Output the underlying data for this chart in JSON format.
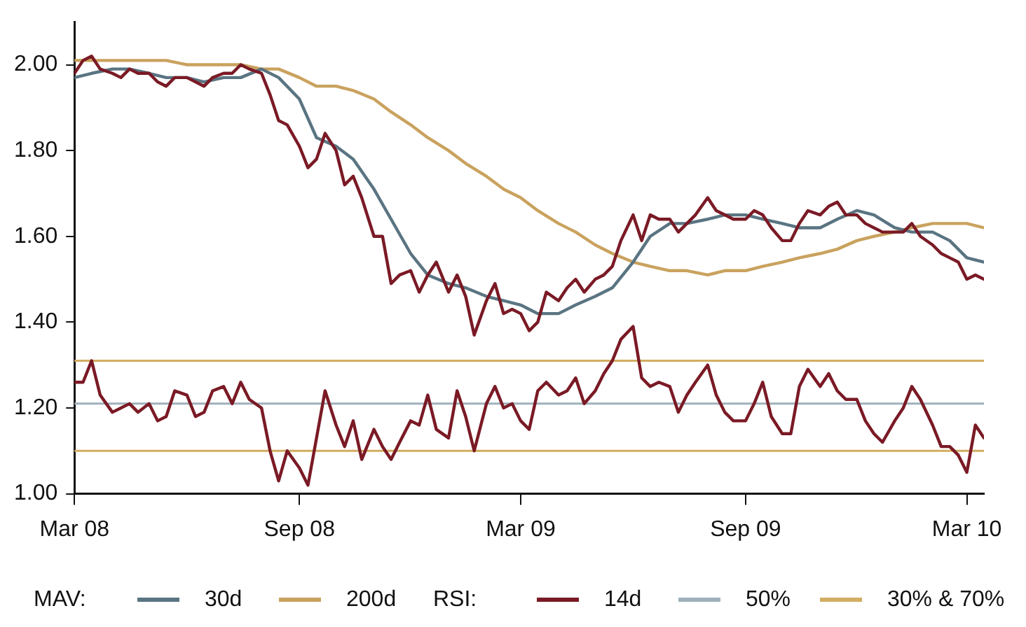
{
  "chart_data": {
    "type": "line",
    "xlim": [
      "2008-03-01",
      "2010-03-15"
    ],
    "xticks": [
      {
        "value": "2008-03-01",
        "label": "Mar 08"
      },
      {
        "value": "2008-09-01",
        "label": "Sep 08"
      },
      {
        "value": "2009-03-01",
        "label": "Mar 09"
      },
      {
        "value": "2009-09-01",
        "label": "Sep 09"
      },
      {
        "value": "2010-03-01",
        "label": "Mar 10"
      }
    ],
    "ylim": [
      1.0,
      2.1
    ],
    "yticks": [
      {
        "value": 1.0,
        "label": "1.00"
      },
      {
        "value": 1.2,
        "label": "1.20"
      },
      {
        "value": 1.4,
        "label": "1.40"
      },
      {
        "value": 1.6,
        "label": "1.60"
      },
      {
        "value": 1.8,
        "label": "1.80"
      },
      {
        "value": 2.0,
        "label": "2.00"
      }
    ],
    "x": [
      "2008-03-01",
      "2008-03-08",
      "2008-03-15",
      "2008-03-22",
      "2008-04-01",
      "2008-04-08",
      "2008-04-15",
      "2008-04-22",
      "2008-05-01",
      "2008-05-08",
      "2008-05-15",
      "2008-05-22",
      "2008-06-01",
      "2008-06-08",
      "2008-06-15",
      "2008-06-22",
      "2008-07-01",
      "2008-07-08",
      "2008-07-15",
      "2008-07-22",
      "2008-08-01",
      "2008-08-08",
      "2008-08-15",
      "2008-08-22",
      "2008-09-01",
      "2008-09-08",
      "2008-09-15",
      "2008-09-22",
      "2008-10-01",
      "2008-10-08",
      "2008-10-15",
      "2008-10-22",
      "2008-11-01",
      "2008-11-08",
      "2008-11-15",
      "2008-11-22",
      "2008-12-01",
      "2008-12-08",
      "2008-12-15",
      "2008-12-22",
      "2009-01-01",
      "2009-01-08",
      "2009-01-15",
      "2009-01-22",
      "2009-02-01",
      "2009-02-08",
      "2009-02-15",
      "2009-02-22",
      "2009-03-01",
      "2009-03-08",
      "2009-03-15",
      "2009-03-22",
      "2009-04-01",
      "2009-04-08",
      "2009-04-15",
      "2009-04-22",
      "2009-05-01",
      "2009-05-08",
      "2009-05-15",
      "2009-05-22",
      "2009-06-01",
      "2009-06-08",
      "2009-06-15",
      "2009-06-22",
      "2009-07-01",
      "2009-07-08",
      "2009-07-15",
      "2009-07-22",
      "2009-08-01",
      "2009-08-08",
      "2009-08-15",
      "2009-08-22",
      "2009-09-01",
      "2009-09-08",
      "2009-09-15",
      "2009-09-22",
      "2009-10-01",
      "2009-10-08",
      "2009-10-15",
      "2009-10-22",
      "2009-11-01",
      "2009-11-08",
      "2009-11-15",
      "2009-11-22",
      "2009-12-01",
      "2009-12-08",
      "2009-12-15",
      "2009-12-22",
      "2010-01-01",
      "2010-01-08",
      "2010-01-15",
      "2010-01-22",
      "2010-02-01",
      "2010-02-08",
      "2010-02-15",
      "2010-02-22",
      "2010-03-01",
      "2010-03-08",
      "2010-03-15"
    ],
    "series": [
      {
        "color": "#7a1a25",
        "values": [
          1.98,
          2.01,
          2.02,
          1.99,
          1.98,
          1.97,
          1.99,
          1.98,
          1.98,
          1.96,
          1.95,
          1.97,
          1.97,
          1.96,
          1.95,
          1.97,
          1.98,
          1.98,
          2.0,
          1.99,
          1.98,
          1.93,
          1.87,
          1.86,
          1.81,
          1.76,
          1.78,
          1.84,
          1.8,
          1.72,
          1.74,
          1.69,
          1.6,
          1.6,
          1.49,
          1.51,
          1.52,
          1.47,
          1.51,
          1.54,
          1.47,
          1.51,
          1.46,
          1.37,
          1.45,
          1.49,
          1.42,
          1.43,
          1.42,
          1.38,
          1.4,
          1.47,
          1.45,
          1.48,
          1.5,
          1.47,
          1.5,
          1.51,
          1.53,
          1.59,
          1.65,
          1.59,
          1.65,
          1.64,
          1.64,
          1.61,
          1.63,
          1.65,
          1.69,
          1.66,
          1.65,
          1.64,
          1.64,
          1.66,
          1.65,
          1.62,
          1.59,
          1.59,
          1.63,
          1.66,
          1.65,
          1.67,
          1.68,
          1.65,
          1.65,
          1.63,
          1.62,
          1.61,
          1.61,
          1.61,
          1.63,
          1.6,
          1.58,
          1.56,
          1.55,
          1.54,
          1.5,
          1.51,
          1.5
        ]
      },
      {
        "name": "30d",
        "color": "#5a7482",
        "x": [
          "2008-03-01",
          "2008-03-15",
          "2008-04-01",
          "2008-04-15",
          "2008-05-01",
          "2008-05-15",
          "2008-06-01",
          "2008-06-15",
          "2008-07-01",
          "2008-07-15",
          "2008-08-01",
          "2008-08-15",
          "2008-09-01",
          "2008-09-15",
          "2008-10-01",
          "2008-10-15",
          "2008-11-01",
          "2008-11-15",
          "2008-12-01",
          "2008-12-15",
          "2009-01-01",
          "2009-01-15",
          "2009-02-01",
          "2009-02-15",
          "2009-03-01",
          "2009-03-15",
          "2009-04-01",
          "2009-04-15",
          "2009-05-01",
          "2009-05-15",
          "2009-06-01",
          "2009-06-15",
          "2009-07-01",
          "2009-07-15",
          "2009-08-01",
          "2009-08-15",
          "2009-09-01",
          "2009-09-15",
          "2009-10-01",
          "2009-10-15",
          "2009-11-01",
          "2009-11-15",
          "2009-12-01",
          "2009-12-15",
          "2010-01-01",
          "2010-01-15",
          "2010-02-01",
          "2010-02-15",
          "2010-03-01",
          "2010-03-15"
        ],
        "values": [
          1.97,
          1.98,
          1.99,
          1.99,
          1.98,
          1.97,
          1.97,
          1.96,
          1.97,
          1.97,
          1.99,
          1.97,
          1.92,
          1.83,
          1.81,
          1.78,
          1.71,
          1.64,
          1.56,
          1.51,
          1.49,
          1.48,
          1.46,
          1.45,
          1.44,
          1.42,
          1.42,
          1.44,
          1.46,
          1.48,
          1.54,
          1.6,
          1.63,
          1.63,
          1.64,
          1.65,
          1.65,
          1.64,
          1.63,
          1.62,
          1.62,
          1.64,
          1.66,
          1.65,
          1.62,
          1.61,
          1.61,
          1.59,
          1.55,
          1.54
        ]
      },
      {
        "name": "200d",
        "color": "#c9a25e",
        "x": [
          "2008-03-01",
          "2008-03-15",
          "2008-04-01",
          "2008-04-15",
          "2008-05-01",
          "2008-05-15",
          "2008-06-01",
          "2008-06-15",
          "2008-07-01",
          "2008-07-15",
          "2008-08-01",
          "2008-08-15",
          "2008-09-01",
          "2008-09-15",
          "2008-10-01",
          "2008-10-15",
          "2008-11-01",
          "2008-11-15",
          "2008-12-01",
          "2008-12-15",
          "2009-01-01",
          "2009-01-15",
          "2009-02-01",
          "2009-02-15",
          "2009-03-01",
          "2009-03-15",
          "2009-04-01",
          "2009-04-15",
          "2009-05-01",
          "2009-05-15",
          "2009-06-01",
          "2009-06-15",
          "2009-07-01",
          "2009-07-15",
          "2009-08-01",
          "2009-08-15",
          "2009-09-01",
          "2009-09-15",
          "2009-10-01",
          "2009-10-15",
          "2009-11-01",
          "2009-11-15",
          "2009-12-01",
          "2009-12-15",
          "2010-01-01",
          "2010-01-15",
          "2010-02-01",
          "2010-02-15",
          "2010-03-01",
          "2010-03-15"
        ],
        "values": [
          2.01,
          2.01,
          2.01,
          2.01,
          2.01,
          2.01,
          2.0,
          2.0,
          2.0,
          2.0,
          1.99,
          1.99,
          1.97,
          1.95,
          1.95,
          1.94,
          1.92,
          1.89,
          1.86,
          1.83,
          1.8,
          1.77,
          1.74,
          1.71,
          1.69,
          1.66,
          1.63,
          1.61,
          1.58,
          1.56,
          1.54,
          1.53,
          1.52,
          1.52,
          1.51,
          1.52,
          1.52,
          1.53,
          1.54,
          1.55,
          1.56,
          1.57,
          1.59,
          1.6,
          1.61,
          1.62,
          1.63,
          1.63,
          1.63,
          1.62
        ]
      },
      {
        "name": "14d",
        "color": "#7a1a25",
        "values": [
          1.26,
          1.26,
          1.31,
          1.23,
          1.19,
          1.2,
          1.21,
          1.19,
          1.21,
          1.17,
          1.18,
          1.24,
          1.23,
          1.18,
          1.19,
          1.24,
          1.25,
          1.21,
          1.26,
          1.22,
          1.2,
          1.1,
          1.03,
          1.1,
          1.06,
          1.02,
          1.13,
          1.24,
          1.16,
          1.11,
          1.17,
          1.08,
          1.15,
          1.11,
          1.08,
          1.12,
          1.17,
          1.16,
          1.23,
          1.15,
          1.13,
          1.24,
          1.18,
          1.1,
          1.21,
          1.25,
          1.2,
          1.21,
          1.17,
          1.15,
          1.24,
          1.26,
          1.23,
          1.24,
          1.27,
          1.21,
          1.24,
          1.28,
          1.31,
          1.36,
          1.39,
          1.27,
          1.25,
          1.26,
          1.25,
          1.19,
          1.23,
          1.26,
          1.3,
          1.23,
          1.19,
          1.17,
          1.17,
          1.21,
          1.26,
          1.18,
          1.14,
          1.14,
          1.25,
          1.29,
          1.25,
          1.28,
          1.24,
          1.22,
          1.22,
          1.17,
          1.14,
          1.12,
          1.17,
          1.2,
          1.25,
          1.22,
          1.16,
          1.11,
          1.11,
          1.09,
          1.05,
          1.16,
          1.13
        ]
      }
    ],
    "ref_lines": [
      {
        "axis": "y",
        "value": 1.21,
        "color": "#9fb0bb"
      },
      {
        "axis": "y",
        "value": 1.31,
        "color": "#d2ad62"
      },
      {
        "axis": "y",
        "value": 1.1,
        "color": "#d2ad62"
      }
    ],
    "annotations": [
      "MAV:",
      "RSI:",
      "50%",
      "30% & 70%"
    ],
    "legend": "bottom",
    "grid": false,
    "marker": "none",
    "line_style": "solid"
  }
}
